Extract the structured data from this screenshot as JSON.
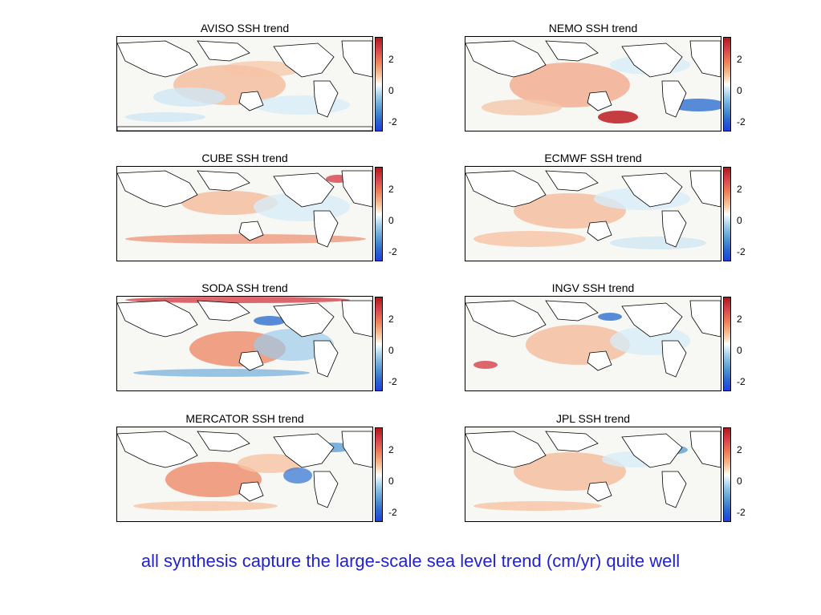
{
  "panels": [
    {
      "title": "AVISO SSH trend",
      "ticks": [
        "2",
        "0",
        "-2"
      ]
    },
    {
      "title": "NEMO SSH trend",
      "ticks": [
        "2",
        "0",
        "-2"
      ]
    },
    {
      "title": "CUBE SSH trend",
      "ticks": [
        "2",
        "0",
        "-2"
      ]
    },
    {
      "title": "ECMWF SSH trend",
      "ticks": [
        "2",
        "0",
        "-2"
      ]
    },
    {
      "title": "SODA SSH trend",
      "ticks": [
        "2",
        "0",
        "-2"
      ]
    },
    {
      "title": "INGV SSH trend",
      "ticks": [
        "2",
        "0",
        "-2"
      ]
    },
    {
      "title": "MERCATOR SSH trend",
      "ticks": [
        "2",
        "0",
        "-2"
      ]
    },
    {
      "title": "JPL SSH trend",
      "ticks": [
        "2",
        "0",
        "-2"
      ]
    }
  ],
  "caption": "all synthesis capture the large-scale sea level trend (cm/yr) quite well",
  "colors": {
    "positive": "#d6404a",
    "neutral": "#ffffff",
    "negative": "#2e6fd1",
    "caption": "#2222cc"
  }
}
